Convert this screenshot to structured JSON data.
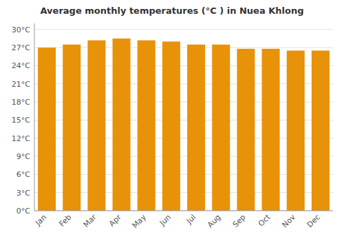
{
  "chart_data": {
    "type": "bar",
    "title": "Average monthly temperatures (°C ) in Nuea Khlong",
    "categories": [
      "Jan",
      "Feb",
      "Mar",
      "Apr",
      "May",
      "Jun",
      "Jul",
      "Aug",
      "Sep",
      "Oct",
      "Nov",
      "Dec"
    ],
    "values": [
      27.0,
      27.5,
      28.2,
      28.5,
      28.2,
      28.0,
      27.5,
      27.5,
      26.8,
      26.8,
      26.5,
      26.5
    ],
    "color": "#E8920A",
    "ylim": [
      0,
      31
    ],
    "yticks": [
      {
        "value": 0,
        "label": "0°C"
      },
      {
        "value": 3,
        "label": "3°C"
      },
      {
        "value": 6,
        "label": "6°C"
      },
      {
        "value": 9,
        "label": "9°C"
      },
      {
        "value": 12,
        "label": "12°C"
      },
      {
        "value": 15,
        "label": "15°C"
      },
      {
        "value": 18,
        "label": "18°C"
      },
      {
        "value": 21,
        "label": "21°C"
      },
      {
        "value": 24,
        "label": "24°C"
      },
      {
        "value": 27,
        "label": "27°C"
      },
      {
        "value": 30,
        "label": "30°C"
      }
    ],
    "grid": true
  }
}
